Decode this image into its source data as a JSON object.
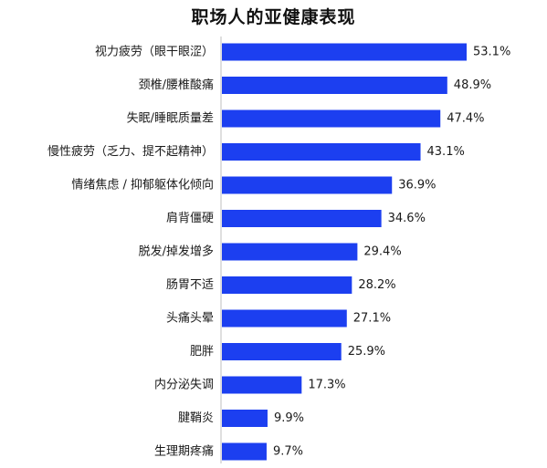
{
  "chart_data": {
    "type": "bar",
    "orientation": "horizontal",
    "title": "职场人的亚健康表现",
    "categories": [
      "视力疲劳（眼干眼涩）",
      "颈椎/腰椎酸痛",
      "失眠/睡眠质量差",
      "慢性疲劳（乏力、提不起精神）",
      "情绪焦虑 / 抑郁躯体化倾向",
      "肩背僵硬",
      "脱发/掉发增多",
      "肠胃不适",
      "头痛头晕",
      "肥胖",
      "内分泌失调",
      "腱鞘炎",
      "生理期疼痛"
    ],
    "values": [
      53.1,
      48.9,
      47.4,
      43.1,
      36.9,
      34.6,
      29.4,
      28.2,
      27.1,
      25.9,
      17.3,
      9.9,
      9.7
    ],
    "value_labels": [
      "53.1%",
      "48.9%",
      "47.4%",
      "43.1%",
      "36.9%",
      "34.6%",
      "29.4%",
      "28.2%",
      "27.1%",
      "25.9%",
      "17.3%",
      "9.9%",
      "9.7%"
    ],
    "unit": "%",
    "xlim": [
      0,
      55
    ],
    "grid": false,
    "legend": "none",
    "bar_color": "#1c3ff0",
    "axis_color": "#bfbfbf"
  }
}
